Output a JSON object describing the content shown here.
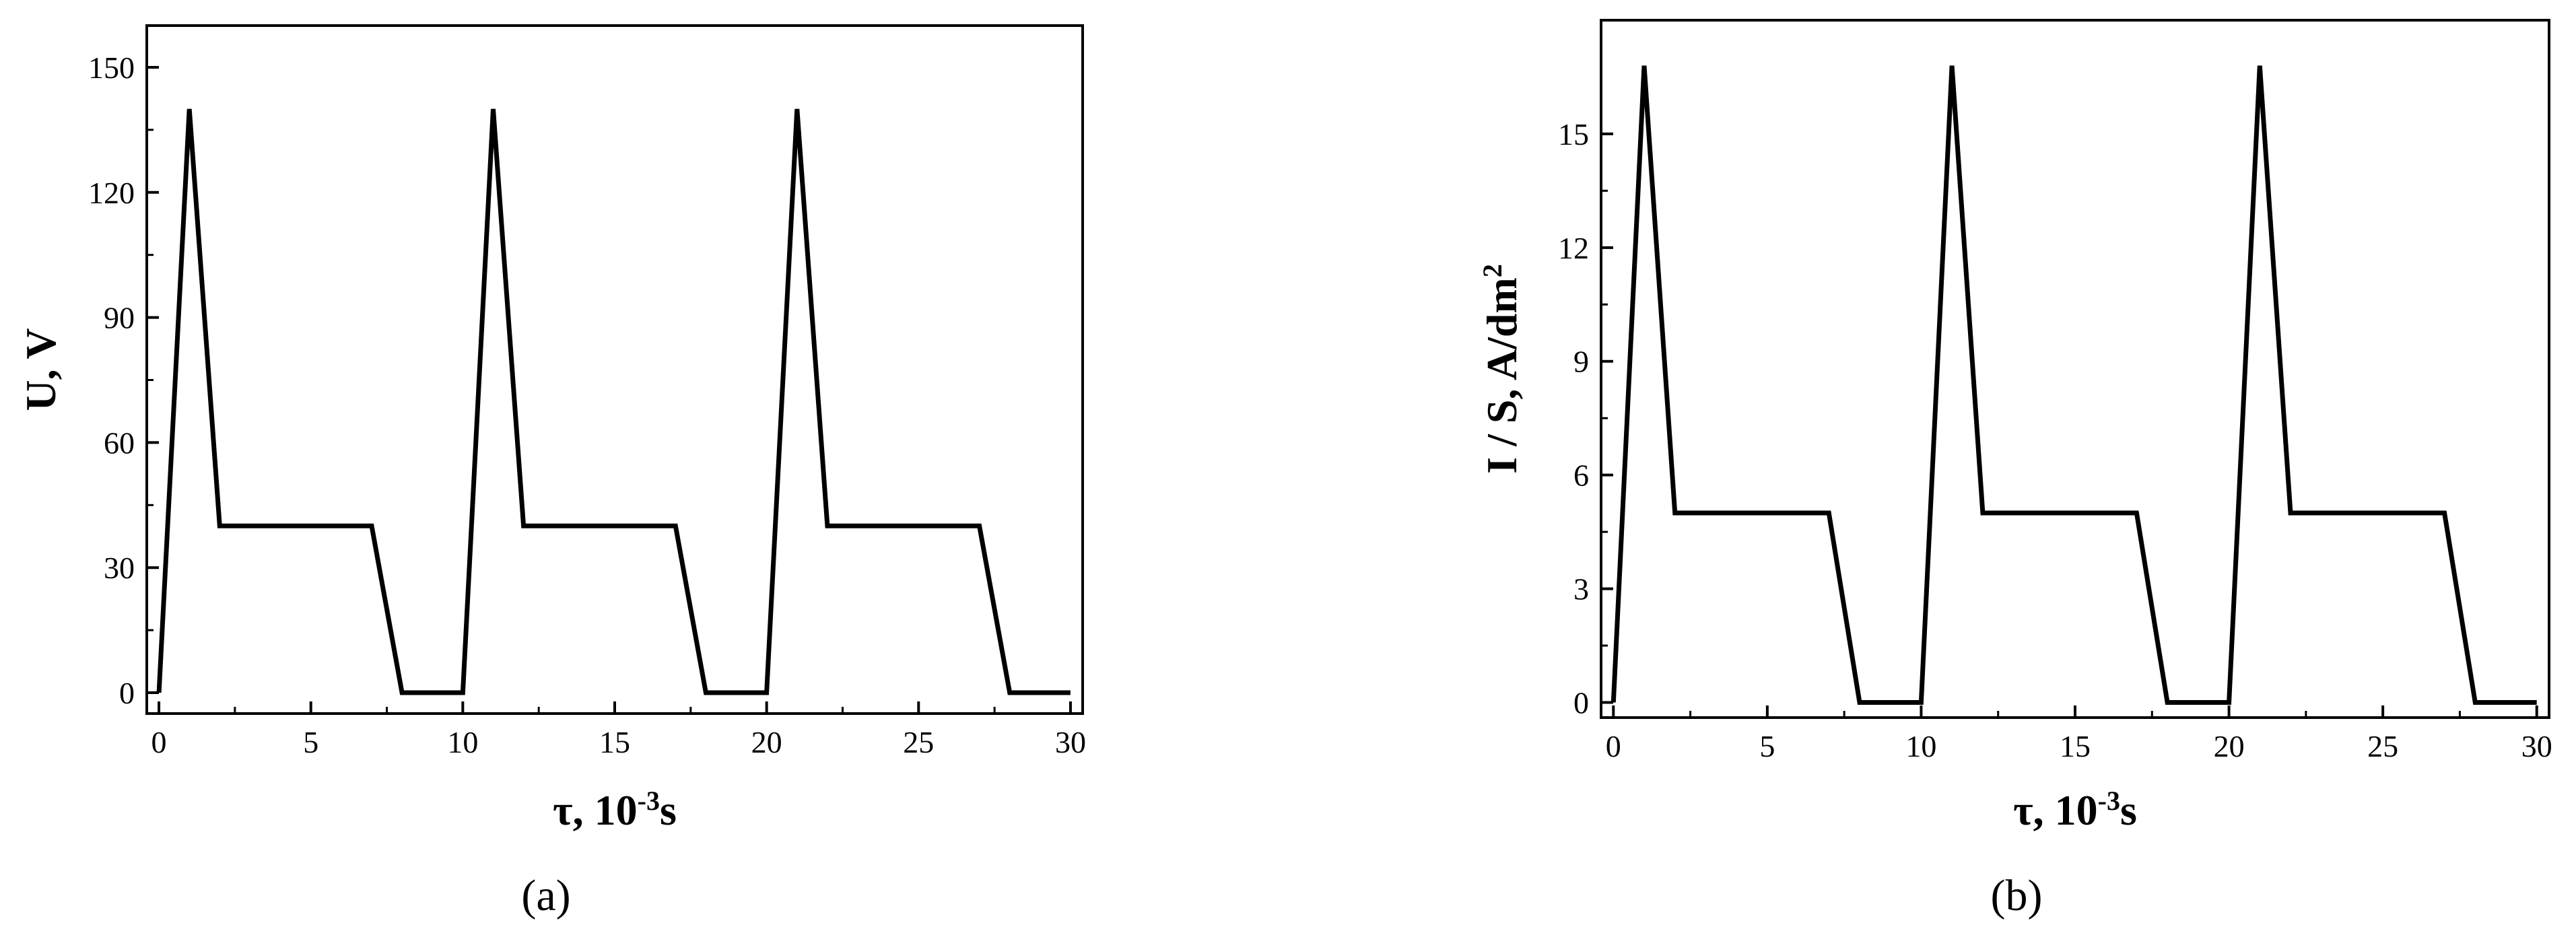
{
  "chart_data": [
    {
      "type": "line",
      "panel_label": "(a)",
      "xlabel_main": "τ, 10",
      "xlabel_sup": "-3",
      "xlabel_tail": "s",
      "ylabel_main": "U, V",
      "ylabel_sup": "",
      "xlim": [
        0,
        30
      ],
      "ylim": [
        -5,
        160
      ],
      "xticks": [
        0,
        5,
        10,
        15,
        20,
        25,
        30
      ],
      "yticks": [
        0,
        30,
        60,
        90,
        120,
        150
      ],
      "grid": false,
      "series": [
        {
          "color": "#000000",
          "x": [
            0,
            1,
            2,
            7,
            8,
            10,
            11,
            12,
            17,
            18,
            20,
            21,
            22,
            27,
            28,
            30
          ],
          "y": [
            0,
            140,
            40,
            40,
            0,
            0,
            140,
            40,
            40,
            0,
            0,
            140,
            40,
            40,
            0,
            0
          ]
        }
      ]
    },
    {
      "type": "line",
      "panel_label": "(b)",
      "xlabel_main": "τ, 10",
      "xlabel_sup": "-3",
      "xlabel_tail": "s",
      "ylabel_main": "I / S, A/dm",
      "ylabel_sup": "2",
      "xlim": [
        0,
        30
      ],
      "ylim": [
        -0.4,
        18
      ],
      "xticks": [
        0,
        5,
        10,
        15,
        20,
        25,
        30
      ],
      "yticks": [
        0,
        3,
        6,
        9,
        12,
        15
      ],
      "grid": false,
      "series": [
        {
          "color": "#000000",
          "x": [
            0,
            1,
            2,
            7,
            8,
            10,
            11,
            12,
            17,
            18,
            20,
            21,
            22,
            27,
            28,
            30
          ],
          "y": [
            0,
            16.8,
            5,
            5,
            0,
            0,
            16.8,
            5,
            5,
            0,
            0,
            16.8,
            5,
            5,
            0,
            0
          ]
        }
      ]
    }
  ]
}
